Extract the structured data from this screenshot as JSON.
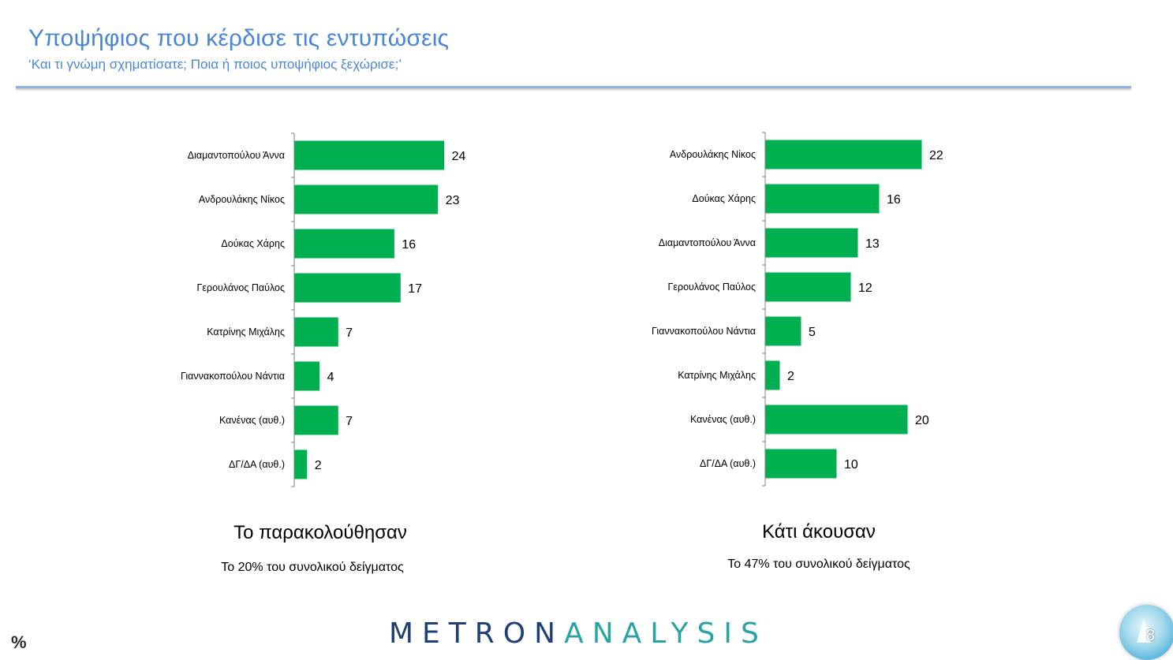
{
  "header": {
    "title": "Υποψήφιος που κέρδισε τις εντυπώσεις",
    "subtitle": "‘Και τι γνώμη σχηματίσατε; Ποια ή ποιος υποψήφιος ξεχώρισε;’"
  },
  "colors": {
    "bar": "#00b050",
    "axis": "#7f7f7f",
    "title": "#4a86d6"
  },
  "chart_data": [
    {
      "type": "bar",
      "orientation": "horizontal",
      "title": "Το παρακολούθησαν",
      "subtitle": "Το 20% του συνολικού δείγματος",
      "categories": [
        "Διαμαντοπούλου Άννα",
        "Ανδρουλάκης Νίκος",
        "Δούκας Χάρης",
        "Γερουλάνος Παύλος",
        "Κατρίνης Μιχάλης",
        "Γιαννακοπούλου Νάντια",
        "Κανένας (αυθ.)",
        "ΔΓ/ΔΑ (αυθ.)"
      ],
      "values": [
        24,
        23,
        16,
        17,
        7,
        4,
        7,
        2
      ],
      "xlim": [
        0,
        30
      ],
      "grid": false,
      "data_labels": true
    },
    {
      "type": "bar",
      "orientation": "horizontal",
      "title": "Κάτι άκουσαν",
      "subtitle": "Το 47% του συνολικού δείγματος",
      "categories": [
        "Ανδρουλάκης Νίκος",
        "Δούκας Χάρης",
        "Διαμαντοπούλου Άννα",
        "Γερουλάνος Παύλος",
        "Γιαννακοπούλου Νάντια",
        "Κατρίνης Μιχάλης",
        "Κανένας (αυθ.)",
        "ΔΓ/ΔΑ (αυθ.)"
      ],
      "values": [
        22,
        16,
        13,
        12,
        5,
        2,
        20,
        10
      ],
      "xlim": [
        0,
        30
      ],
      "grid": false,
      "data_labels": true
    }
  ],
  "footer": {
    "unit": "%",
    "logo_part1": "METRON",
    "logo_part2": "ANALYSIS",
    "page_number": "8"
  }
}
